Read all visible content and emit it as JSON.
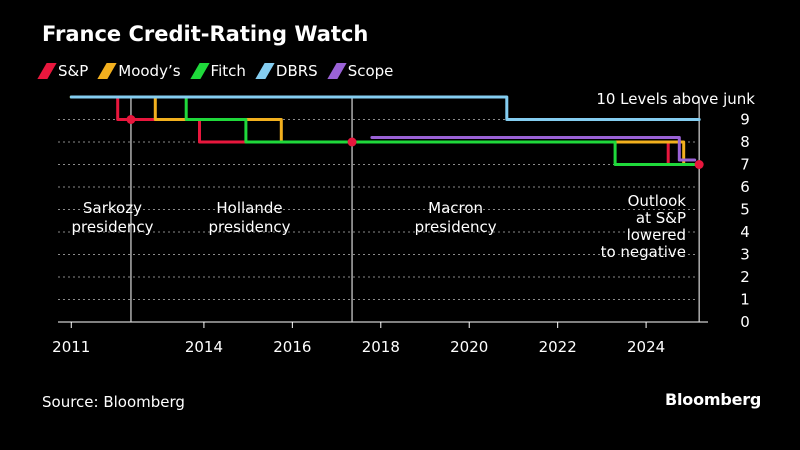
{
  "title": "France Credit-Rating Watch",
  "source": "Source: Bloomberg",
  "brand": "Bloomberg",
  "legend": [
    {
      "name": "S&P",
      "color": "#e8173d"
    },
    {
      "name": "Moody’s",
      "color": "#f2b01e"
    },
    {
      "name": "Fitch",
      "color": "#1fd93b"
    },
    {
      "name": "DBRS",
      "color": "#84cdf0"
    },
    {
      "name": "Scope",
      "color": "#9a62d6"
    }
  ],
  "chart_data": {
    "type": "line",
    "title": "France Credit-Rating Watch",
    "ylabel": "",
    "xlabel": "",
    "xlim": [
      2010.7,
      2025.4
    ],
    "ylim": [
      0,
      10
    ],
    "yticks": [
      0,
      1,
      2,
      3,
      4,
      5,
      6,
      7,
      8,
      9
    ],
    "xticks": [
      2011,
      2014,
      2016,
      2018,
      2020,
      2022,
      2024
    ],
    "grid": "dotted horizontal",
    "legend_position": "top",
    "top_label": "10 Levels above junk",
    "series": [
      {
        "name": "S&P",
        "color": "#e8173d",
        "points": [
          [
            2011.0,
            10
          ],
          [
            2012.05,
            10
          ],
          [
            2012.05,
            9
          ],
          [
            2013.9,
            9
          ],
          [
            2013.9,
            8
          ],
          [
            2024.5,
            8
          ],
          [
            2024.5,
            7
          ],
          [
            2025.2,
            7
          ]
        ]
      },
      {
        "name": "Moody’s",
        "color": "#f2b01e",
        "points": [
          [
            2011.0,
            10
          ],
          [
            2012.9,
            10
          ],
          [
            2012.9,
            9
          ],
          [
            2015.75,
            9
          ],
          [
            2015.75,
            8
          ],
          [
            2024.85,
            8
          ],
          [
            2024.85,
            7
          ],
          [
            2025.2,
            7
          ]
        ]
      },
      {
        "name": "Fitch",
        "color": "#1fd93b",
        "points": [
          [
            2011.0,
            10
          ],
          [
            2013.6,
            10
          ],
          [
            2013.6,
            9
          ],
          [
            2014.95,
            9
          ],
          [
            2014.95,
            8
          ],
          [
            2023.3,
            8
          ],
          [
            2023.3,
            7
          ],
          [
            2025.2,
            7
          ]
        ]
      },
      {
        "name": "DBRS",
        "color": "#84cdf0",
        "points": [
          [
            2011.0,
            10
          ],
          [
            2020.85,
            10
          ],
          [
            2020.85,
            9
          ],
          [
            2025.2,
            9
          ]
        ]
      },
      {
        "name": "Scope",
        "color": "#9a62d6",
        "points": [
          [
            2017.8,
            8.2
          ],
          [
            2024.75,
            8.2
          ],
          [
            2024.75,
            7.2
          ],
          [
            2025.1,
            7.2
          ]
        ]
      }
    ],
    "events": [
      {
        "x": 2012.35,
        "label_lines": [
          "Sarkozy",
          "presidency"
        ]
      },
      {
        "x": 2017.35,
        "label_lines": [
          "Hollande",
          "presidency"
        ]
      },
      {
        "x": 2025.2,
        "label_lines": [
          "Macron",
          "presidency"
        ]
      }
    ],
    "annotation_lines": [
      "Outlook",
      "at S&P",
      "lowered",
      "to negative"
    ],
    "markers": [
      {
        "x": 2012.35,
        "y": 9,
        "color": "#e8173d"
      },
      {
        "x": 2017.35,
        "y": 8,
        "color": "#e8173d"
      },
      {
        "x": 2025.2,
        "y": 7,
        "color": "#e8173d"
      }
    ]
  }
}
